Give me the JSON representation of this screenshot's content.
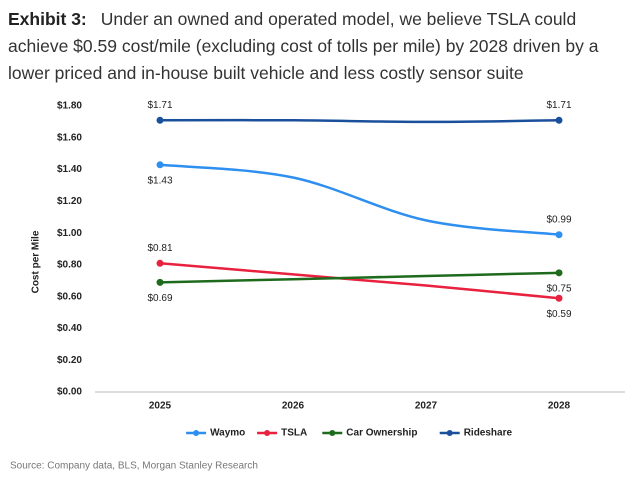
{
  "chart_data": {
    "type": "line",
    "title_label": "Exhibit 3:",
    "title": "Under an owned and operated model, we believe TSLA could achieve $0.59 cost/mile (excluding cost of tolls per mile) by 2028 driven by a lower priced and in-house built vehicle and less costly sensor suite",
    "y_label": "Cost per Mile",
    "source": "Source: Company data, BLS, Morgan Stanley Research",
    "categories": [
      "2025",
      "2026",
      "2027",
      "2028"
    ],
    "series": [
      {
        "name": "Waymo",
        "color": "#2e8ff0",
        "values": [
          1.43,
          1.35,
          1.08,
          0.99
        ],
        "value_labels": [
          "$1.43",
          null,
          null,
          "$0.99"
        ]
      },
      {
        "name": "TSLA",
        "color": "#e8213e",
        "values": [
          0.81,
          0.74,
          0.67,
          0.59
        ],
        "value_labels": [
          "$0.81",
          null,
          null,
          "$0.59"
        ]
      },
      {
        "name": "Car Ownership",
        "color": "#1e6b1e",
        "values": [
          0.69,
          0.71,
          0.73,
          0.75
        ],
        "value_labels": [
          "$0.69",
          null,
          null,
          "$0.75"
        ]
      },
      {
        "name": "Rideshare",
        "color": "#1a4f9c",
        "values": [
          1.71,
          1.71,
          1.7,
          1.71
        ],
        "value_labels": [
          "$1.71",
          null,
          null,
          "$1.71"
        ]
      }
    ],
    "ylim": [
      0,
      1.8
    ],
    "yticks": [
      {
        "value": 0,
        "label": "$0.00"
      },
      {
        "value": 0.2,
        "label": "$0.20"
      },
      {
        "value": 0.4,
        "label": "$0.40"
      },
      {
        "value": 0.6,
        "label": "$0.60"
      },
      {
        "value": 0.8,
        "label": "$0.80"
      },
      {
        "value": 1.0,
        "label": "$1.00"
      },
      {
        "value": 1.2,
        "label": "$1.20"
      },
      {
        "value": 1.4,
        "label": "$1.40"
      },
      {
        "value": 1.6,
        "label": "$1.60"
      },
      {
        "value": 1.8,
        "label": "$1.80"
      }
    ],
    "grid": false,
    "legend": "bottom"
  }
}
